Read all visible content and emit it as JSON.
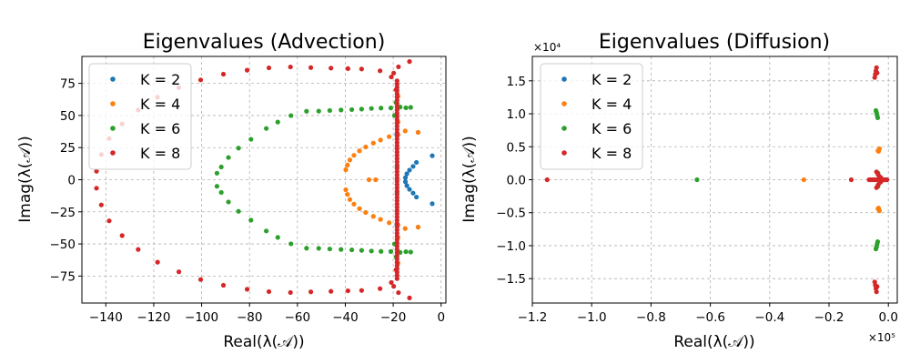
{
  "chart_data": [
    {
      "type": "scatter",
      "title": "Eigenvalues (Advection)",
      "xlabel": "Real(λ(𝒜))",
      "ylabel": "Imag(λ(𝒜))",
      "xlim": [
        -150,
        2
      ],
      "ylim": [
        -96,
        96
      ],
      "xticks": [
        -140,
        -120,
        -100,
        -80,
        -60,
        -40,
        -20,
        0
      ],
      "yticks": [
        -75,
        -50,
        -25,
        0,
        25,
        50,
        75
      ],
      "x_multiplier": "",
      "y_multiplier": "",
      "grid": true,
      "legend": "top-left",
      "series": [
        {
          "name": "K = 2",
          "color": "#1f77b4",
          "points": [
            [
              -3.7,
              18.7
            ],
            [
              -3.7,
              -18.7
            ],
            [
              -9.6,
              36.9
            ],
            [
              -9.6,
              -36.9
            ],
            [
              -10.3,
              13.5
            ],
            [
              -10.3,
              -13.5
            ],
            [
              -11.7,
              10.4
            ],
            [
              -11.7,
              -10.4
            ],
            [
              -13.2,
              7.5
            ],
            [
              -13.2,
              -7.5
            ],
            [
              -14.3,
              4.6
            ],
            [
              -14.3,
              -4.6
            ],
            [
              -14.9,
              1.6
            ],
            [
              -14.9,
              -1.6
            ],
            [
              -18.5,
              35
            ],
            [
              -18.5,
              -35
            ]
          ]
        },
        {
          "name": "K = 4",
          "color": "#ff7f0e",
          "points": [
            [
              -9.6,
              -36.9
            ],
            [
              -9.6,
              36.9
            ],
            [
              -15,
              38
            ],
            [
              -15,
              -38
            ],
            [
              -18,
              35.2
            ],
            [
              -18,
              -35.2
            ],
            [
              -21.7,
              33.5
            ],
            [
              -21.7,
              -33.5
            ],
            [
              -25.3,
              30.9
            ],
            [
              -25.3,
              -30.9
            ],
            [
              -28.3,
              28.5
            ],
            [
              -28.3,
              -28.5
            ],
            [
              -31.5,
              25.5
            ],
            [
              -31.5,
              -25.5
            ],
            [
              -34.1,
              22.5
            ],
            [
              -34.1,
              -22.5
            ],
            [
              -36.4,
              19
            ],
            [
              -36.4,
              -19
            ],
            [
              -38.1,
              15.4
            ],
            [
              -38.1,
              -15.4
            ],
            [
              -39.1,
              11.4
            ],
            [
              -39.1,
              -11.4
            ],
            [
              -39.8,
              7.8
            ],
            [
              -39.8,
              -7.8
            ],
            [
              -30.1,
              0
            ],
            [
              -27.3,
              0
            ],
            [
              -18,
              -45
            ],
            [
              -18,
              45
            ],
            [
              -18,
              65
            ],
            [
              -18,
              -65
            ]
          ]
        },
        {
          "name": "K = 6",
          "color": "#2ca02c",
          "points": [
            [
              -12.7,
              56.3
            ],
            [
              -12.7,
              -56.3
            ],
            [
              -14.7,
              56
            ],
            [
              -14.7,
              -56
            ],
            [
              -18.8,
              -60
            ],
            [
              -18.8,
              60
            ],
            [
              -17.1,
              56.6
            ],
            [
              -17.1,
              -56.6
            ],
            [
              -21,
              55.9
            ],
            [
              -21,
              -55.9
            ],
            [
              -25.1,
              55.8
            ],
            [
              -25.1,
              -55.8
            ],
            [
              -29.1,
              55.5
            ],
            [
              -29.1,
              -55.5
            ],
            [
              -33.2,
              55
            ],
            [
              -33.2,
              -55
            ],
            [
              -37.3,
              54.6
            ],
            [
              -37.3,
              -54.6
            ],
            [
              -41.8,
              54.3
            ],
            [
              -41.8,
              -54.3
            ],
            [
              -46.5,
              53.9
            ],
            [
              -46.5,
              -53.9
            ],
            [
              -51.1,
              53.4
            ],
            [
              -51.1,
              -53.4
            ],
            [
              -56.2,
              53.3
            ],
            [
              -56.2,
              -53.3
            ],
            [
              -62.7,
              49.9
            ],
            [
              -62.7,
              -49.9
            ],
            [
              -68.2,
              44.9
            ],
            [
              -68.2,
              -44.9
            ],
            [
              -73,
              39.9
            ],
            [
              -73,
              -39.9
            ],
            [
              -79.4,
              31.5
            ],
            [
              -79.4,
              -31.5
            ],
            [
              -84.6,
              24.6
            ],
            [
              -84.6,
              -24.6
            ],
            [
              -88.8,
              17.3
            ],
            [
              -88.8,
              -17.3
            ],
            [
              -91.8,
              9.9
            ],
            [
              -91.8,
              -9.9
            ],
            [
              -93.6,
              5.1
            ],
            [
              -93.6,
              -5.1
            ],
            [
              -19.5,
              50
            ],
            [
              -19.5,
              -50
            ],
            [
              -18.4,
              10
            ],
            [
              -18.4,
              -10
            ]
          ]
        },
        {
          "name": "K = 8",
          "color": "#d62728",
          "points": [
            [
              -13.2,
              92
            ],
            [
              -13.2,
              -92
            ],
            [
              -17.8,
              87.9
            ],
            [
              -17.8,
              -87.9
            ],
            [
              -19.8,
              83
            ],
            [
              -19.8,
              -83
            ],
            [
              -25.5,
              84.8
            ],
            [
              -25.5,
              -84.8
            ],
            [
              -33.2,
              86.2
            ],
            [
              -33.2,
              -86.2
            ],
            [
              -38.9,
              86.5
            ],
            [
              -38.9,
              -86.5
            ],
            [
              -46,
              86.9
            ],
            [
              -46,
              -86.9
            ],
            [
              -54.4,
              87.3
            ],
            [
              -54.4,
              -87.3
            ],
            [
              -62.9,
              87.8
            ],
            [
              -62.9,
              -87.8
            ],
            [
              -71.9,
              87.1
            ],
            [
              -71.9,
              -87.1
            ],
            [
              -81,
              85.3
            ],
            [
              -81,
              -85.3
            ],
            [
              -90.9,
              82.2
            ],
            [
              -90.9,
              -82.2
            ],
            [
              -100.4,
              77.7
            ],
            [
              -100.4,
              -77.7
            ],
            [
              -109.5,
              71.7
            ],
            [
              -109.5,
              -71.7
            ],
            [
              -118.4,
              64.2
            ],
            [
              -118.4,
              -64.2
            ],
            [
              -126.5,
              54.3
            ],
            [
              -126.5,
              -54.3
            ],
            [
              -133.2,
              43.5
            ],
            [
              -133.2,
              -43.5
            ],
            [
              -138.6,
              32
            ],
            [
              -138.6,
              -32
            ],
            [
              -141.9,
              19.6
            ],
            [
              -141.9,
              -19.6
            ],
            [
              -143.9,
              6.6
            ],
            [
              -143.9,
              -6.6
            ],
            [
              -20.8,
              -80
            ],
            [
              -20.8,
              80
            ],
            [
              -18.8,
              70
            ],
            [
              -18.8,
              -70
            ]
          ]
        }
      ],
      "vertical_band": {
        "series": 3,
        "x": -18.4,
        "y_from": -77,
        "y_to": 77,
        "count": 62
      }
    },
    {
      "type": "scatter",
      "title": "Eigenvalues (Diffusion)",
      "xlabel": "Real(λ(𝒜))",
      "ylabel": "Imag(λ(𝒜))",
      "xlim": [
        -1.2,
        0.03
      ],
      "ylim": [
        -1.87,
        1.87
      ],
      "xticks": [
        -1.2,
        -1.0,
        -0.8,
        -0.6,
        -0.4,
        -0.2,
        0.0
      ],
      "xtick_labels": [
        "−1.2",
        "−1.0",
        "−0.8",
        "−0.6",
        "−0.4",
        "−0.2",
        "0.0"
      ],
      "yticks": [
        -1.5,
        -1.0,
        -0.5,
        0.0,
        0.5,
        1.0,
        1.5
      ],
      "ytick_labels": [
        "−1.5",
        "−1.0",
        "−0.5",
        "0.0",
        "0.5",
        "1.0",
        "1.5"
      ],
      "x_multiplier": "×10⁵",
      "y_multiplier": "×10⁴",
      "grid": true,
      "legend": "top-left",
      "series": [
        {
          "name": "K = 2",
          "color": "#1f77b4",
          "points": [
            [
              -0.02,
              0
            ],
            [
              -0.01,
              0
            ],
            [
              -0.005,
              0
            ]
          ]
        },
        {
          "name": "K = 4",
          "color": "#ff7f0e",
          "points": [
            [
              -0.285,
              0
            ],
            [
              -0.03,
              0.47
            ],
            [
              -0.03,
              -0.47
            ],
            [
              -0.035,
              0.44
            ],
            [
              -0.035,
              -0.44
            ],
            [
              -0.033,
              0.43
            ],
            [
              -0.033,
              -0.43
            ],
            [
              -0.06,
              0
            ],
            [
              -0.05,
              0
            ]
          ]
        },
        {
          "name": "K = 6",
          "color": "#2ca02c",
          "points": [
            [
              -0.645,
              0
            ],
            [
              -0.04,
              1.02
            ],
            [
              -0.04,
              -1.02
            ],
            [
              -0.038,
              0.98
            ],
            [
              -0.038,
              -0.98
            ],
            [
              -0.036,
              0.94
            ],
            [
              -0.036,
              -0.94
            ],
            [
              -0.042,
              1.05
            ],
            [
              -0.042,
              -1.05
            ],
            [
              -0.045,
              0
            ],
            [
              -0.035,
              0.1
            ],
            [
              -0.035,
              -0.1
            ]
          ]
        },
        {
          "name": "K = 8",
          "color": "#d62728",
          "points": [
            [
              -1.15,
              0
            ],
            [
              -0.125,
              0
            ],
            [
              -0.065,
              0
            ],
            [
              -0.06,
              0
            ],
            [
              -0.055,
              0
            ],
            [
              -0.05,
              0
            ],
            [
              -0.045,
              0
            ],
            [
              -0.04,
              0
            ],
            [
              -0.035,
              0
            ],
            [
              -0.03,
              0
            ],
            [
              -0.025,
              0
            ],
            [
              -0.02,
              0
            ],
            [
              -0.015,
              0
            ],
            [
              -0.01,
              0
            ],
            [
              -0.005,
              0
            ],
            [
              -0.04,
              1.7
            ],
            [
              -0.04,
              -1.7
            ],
            [
              -0.042,
              1.65
            ],
            [
              -0.042,
              -1.65
            ],
            [
              -0.044,
              1.6
            ],
            [
              -0.044,
              -1.6
            ],
            [
              -0.046,
              1.55
            ],
            [
              -0.046,
              -1.55
            ],
            [
              -0.038,
              1.62
            ],
            [
              -0.038,
              -1.62
            ],
            [
              -0.04,
              0.12
            ],
            [
              -0.04,
              -0.12
            ],
            [
              -0.035,
              0.08
            ],
            [
              -0.035,
              -0.08
            ],
            [
              -0.03,
              0.05
            ],
            [
              -0.03,
              -0.05
            ],
            [
              -0.025,
              0.03
            ],
            [
              -0.025,
              -0.03
            ]
          ]
        }
      ]
    }
  ]
}
